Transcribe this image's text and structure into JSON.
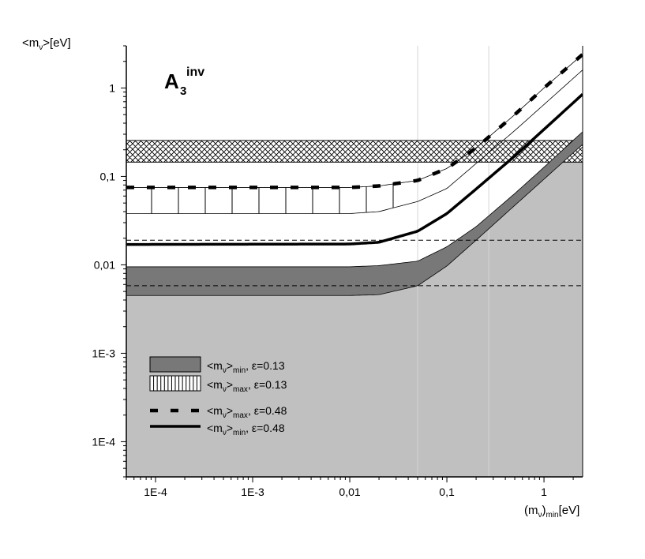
{
  "chart_data": {
    "type": "line",
    "title": "A",
    "title_sub": "3",
    "title_sup": "inv",
    "ylabel": {
      "pre": "<m",
      "sub": "ν",
      "post": ">[eV]"
    },
    "xlabel": {
      "pre": "(m",
      "sub": "ν",
      "mid": ")",
      "sub2": "min",
      "post": "[eV]"
    },
    "x_scale": "log",
    "y_scale": "log",
    "xlim": [
      5e-05,
      2.5
    ],
    "ylim": [
      4e-05,
      3
    ],
    "x_ticks": [
      {
        "value": 0.0001,
        "label": "1E-4"
      },
      {
        "value": 0.001,
        "label": "1E-3"
      },
      {
        "value": 0.01,
        "label": "0,01"
      },
      {
        "value": 0.1,
        "label": "0,1"
      },
      {
        "value": 1,
        "label": "1"
      }
    ],
    "y_ticks": [
      {
        "value": 0.0001,
        "label": "1E-4"
      },
      {
        "value": 0.001,
        "label": "1E-3"
      },
      {
        "value": 0.01,
        "label": "0,01"
      },
      {
        "value": 0.1,
        "label": "0,1"
      },
      {
        "value": 1,
        "label": "1"
      }
    ],
    "bands": {
      "excluded_region": {
        "y_upper_left": 0.0045,
        "y_upper_right": 0.32
      },
      "crosshatch_band": {
        "ylim": [
          0.145,
          0.255
        ]
      },
      "dashed_levels": [
        0.019,
        0.0058
      ]
    },
    "series": [
      {
        "name_pre": "<m",
        "name_sub": "ν",
        "name_mid": ">",
        "name_sub2": "min",
        "name_post": ", ε=0.13",
        "style": "dark-gray band",
        "x": [
          5e-05,
          0.01,
          0.02,
          0.05,
          0.1,
          0.2,
          0.5,
          1,
          2.5
        ],
        "upper": [
          0.0095,
          0.0095,
          0.0098,
          0.011,
          0.016,
          0.027,
          0.064,
          0.127,
          0.32
        ],
        "lower": [
          0.0045,
          0.0045,
          0.0046,
          0.0058,
          0.0097,
          0.019,
          0.047,
          0.093,
          0.23
        ]
      },
      {
        "name_pre": "<m",
        "name_sub": "ν",
        "name_mid": ">",
        "name_sub2": "max",
        "name_post": ", ε=0.13",
        "style": "vertical hatch",
        "x": [
          5e-05,
          0.01,
          0.02,
          0.05,
          0.1,
          0.2,
          0.5,
          1,
          2.5
        ],
        "upper": [
          0.075,
          0.075,
          0.078,
          0.09,
          0.123,
          0.21,
          0.5,
          1.0,
          2.4
        ],
        "lower": [
          0.038,
          0.038,
          0.04,
          0.052,
          0.073,
          0.14,
          0.33,
          0.65,
          1.6
        ]
      },
      {
        "name_pre": "<m",
        "name_sub": "ν",
        "name_mid": ">",
        "name_sub2": "max",
        "name_post": ", ε=0.48",
        "style": "heavy dashed",
        "x": [
          5e-05,
          0.01,
          0.02,
          0.05,
          0.1,
          0.2,
          0.5,
          1,
          2.5
        ],
        "y": [
          0.075,
          0.075,
          0.078,
          0.09,
          0.123,
          0.21,
          0.5,
          1.0,
          2.4
        ]
      },
      {
        "name_pre": "<m",
        "name_sub": "ν",
        "name_mid": ">",
        "name_sub2": "min",
        "name_post": ", ε=0.48",
        "style": "thick solid",
        "x": [
          5e-05,
          0.01,
          0.02,
          0.05,
          0.1,
          0.2,
          0.5,
          1,
          2.5
        ],
        "y": [
          0.017,
          0.0172,
          0.018,
          0.024,
          0.038,
          0.072,
          0.17,
          0.34,
          0.85
        ]
      }
    ],
    "colors": {
      "excluded": "#c0c0c0",
      "min_band": "#787878",
      "crosshatch": "#000000",
      "axis": "#000000"
    }
  }
}
